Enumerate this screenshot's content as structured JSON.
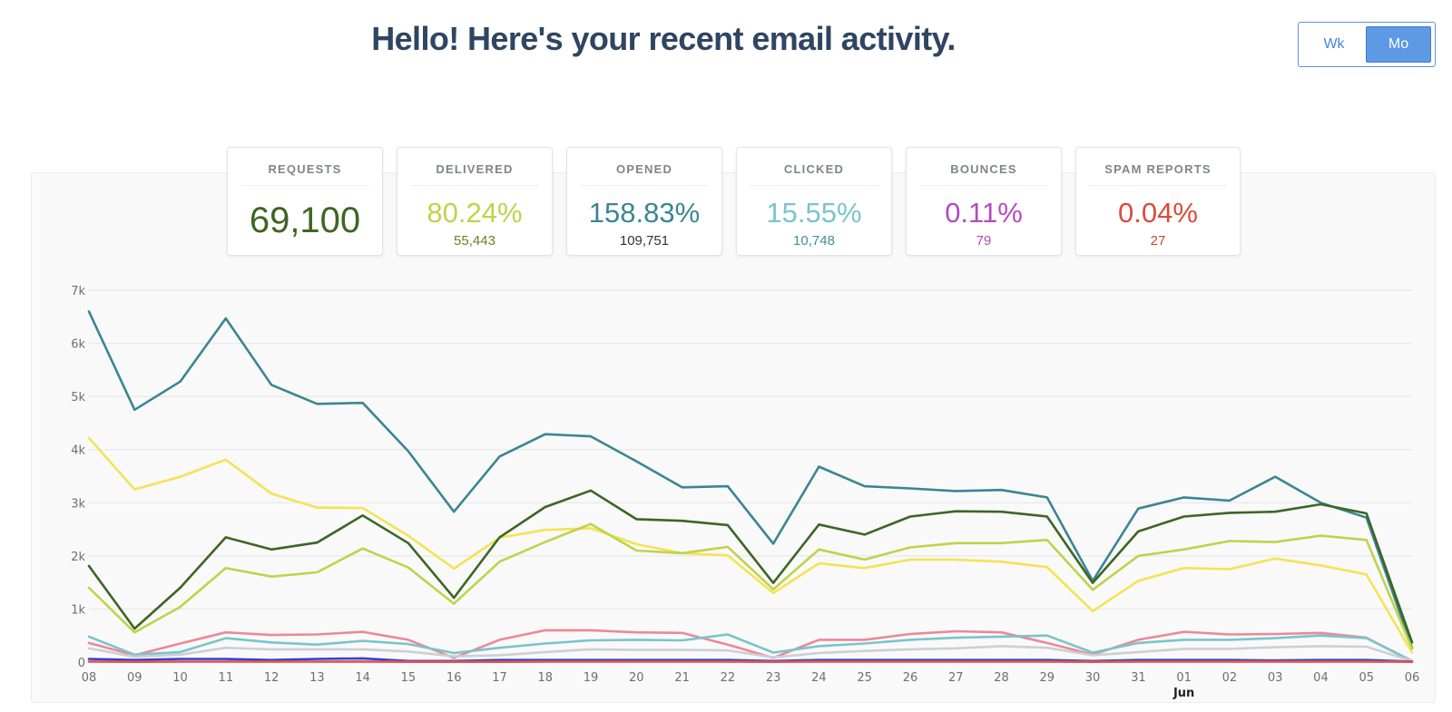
{
  "headline": "Hello! Here's your recent email activity.",
  "range_toggle": {
    "options": [
      "Wk",
      "Mo"
    ],
    "selected": "Mo"
  },
  "stats": [
    {
      "label": "REQUESTS",
      "value": "69,100",
      "sub": "",
      "color": "#3d6524",
      "subcolor": "#3d6524"
    },
    {
      "label": "DELIVERED",
      "value": "80.24%",
      "sub": "55,443",
      "color": "#bfd34a",
      "subcolor": "#6f7f22"
    },
    {
      "label": "OPENED",
      "value": "158.83%",
      "sub": "109,751",
      "color": "#3a8693",
      "subcolor": "#333333"
    },
    {
      "label": "CLICKED",
      "value": "15.55%",
      "sub": "10,748",
      "color": "#7ac4cc",
      "subcolor": "#3d8e9a"
    },
    {
      "label": "BOUNCES",
      "value": "0.11%",
      "sub": "79",
      "color": "#b24bbf",
      "subcolor": "#b24bbf"
    },
    {
      "label": "SPAM REPORTS",
      "value": "0.04%",
      "sub": "27",
      "color": "#dd4b39",
      "subcolor": "#c2492f"
    }
  ],
  "chart_data": {
    "type": "line",
    "x": [
      "08",
      "09",
      "10",
      "11",
      "12",
      "13",
      "14",
      "15",
      "16",
      "17",
      "18",
      "19",
      "20",
      "21",
      "22",
      "23",
      "24",
      "25",
      "26",
      "27",
      "28",
      "29",
      "30",
      "31",
      "01",
      "02",
      "03",
      "04",
      "05",
      "06"
    ],
    "x_month_label": {
      "at": "01",
      "text": "Jun"
    },
    "ylim": [
      0,
      7000
    ],
    "yticks": [
      0,
      1000,
      2000,
      3000,
      4000,
      5000,
      6000,
      7000
    ],
    "ytick_labels": [
      "0",
      "1k",
      "2k",
      "3k",
      "4k",
      "5k",
      "6k",
      "7k"
    ],
    "grid": true,
    "series": [
      {
        "color": "#3a8693",
        "values": [
          6600,
          4750,
          5280,
          6470,
          5220,
          4860,
          4880,
          3970,
          2830,
          3870,
          4290,
          4250,
          3780,
          3290,
          3310,
          2230,
          3680,
          3310,
          3270,
          3220,
          3240,
          3100,
          1530,
          2890,
          3100,
          3040,
          3490,
          3000,
          2720,
          270
        ]
      },
      {
        "color": "#f4e353",
        "values": [
          4220,
          3250,
          3490,
          3810,
          3170,
          2910,
          2900,
          2380,
          1760,
          2340,
          2490,
          2520,
          2220,
          2050,
          2010,
          1300,
          1860,
          1770,
          1930,
          1930,
          1890,
          1790,
          960,
          1530,
          1770,
          1750,
          1950,
          1820,
          1650,
          180
        ]
      },
      {
        "color": "#3d6524",
        "values": [
          1810,
          630,
          1400,
          2350,
          2120,
          2250,
          2760,
          2240,
          1210,
          2350,
          2920,
          3230,
          2690,
          2660,
          2580,
          1490,
          2590,
          2400,
          2740,
          2840,
          2830,
          2740,
          1490,
          2460,
          2740,
          2810,
          2830,
          2970,
          2800,
          370
        ]
      },
      {
        "color": "#bfd34a",
        "values": [
          1400,
          560,
          1040,
          1770,
          1610,
          1690,
          2140,
          1780,
          1100,
          1890,
          2260,
          2600,
          2100,
          2050,
          2170,
          1370,
          2120,
          1930,
          2160,
          2240,
          2240,
          2300,
          1360,
          2000,
          2120,
          2280,
          2260,
          2380,
          2300,
          250
        ]
      },
      {
        "color": "#ec8898",
        "values": [
          360,
          130,
          350,
          560,
          510,
          520,
          570,
          420,
          80,
          420,
          600,
          600,
          560,
          550,
          330,
          80,
          420,
          420,
          530,
          580,
          560,
          360,
          140,
          420,
          570,
          520,
          530,
          550,
          460,
          20
        ]
      },
      {
        "color": "#7ac4cc",
        "values": [
          480,
          140,
          190,
          450,
          370,
          330,
          400,
          340,
          170,
          270,
          350,
          410,
          420,
          410,
          520,
          180,
          300,
          350,
          420,
          460,
          480,
          500,
          180,
          360,
          420,
          420,
          450,
          500,
          450,
          20
        ]
      },
      {
        "color": "#cdcfd2",
        "values": [
          260,
          100,
          140,
          270,
          240,
          240,
          240,
          200,
          110,
          130,
          190,
          240,
          230,
          230,
          220,
          90,
          170,
          210,
          240,
          260,
          300,
          270,
          130,
          190,
          250,
          250,
          280,
          300,
          290,
          20
        ]
      },
      {
        "color": "#3640c8",
        "values": [
          60,
          40,
          60,
          60,
          40,
          60,
          70,
          20,
          20,
          40,
          40,
          40,
          40,
          40,
          40,
          20,
          40,
          40,
          40,
          40,
          40,
          40,
          20,
          40,
          40,
          40,
          30,
          40,
          40,
          10
        ]
      },
      {
        "color": "#e05555",
        "values": [
          10,
          5,
          10,
          10,
          10,
          10,
          10,
          5,
          5,
          5,
          10,
          10,
          10,
          10,
          10,
          5,
          10,
          10,
          10,
          10,
          10,
          10,
          5,
          10,
          10,
          10,
          10,
          10,
          10,
          5
        ]
      }
    ]
  }
}
